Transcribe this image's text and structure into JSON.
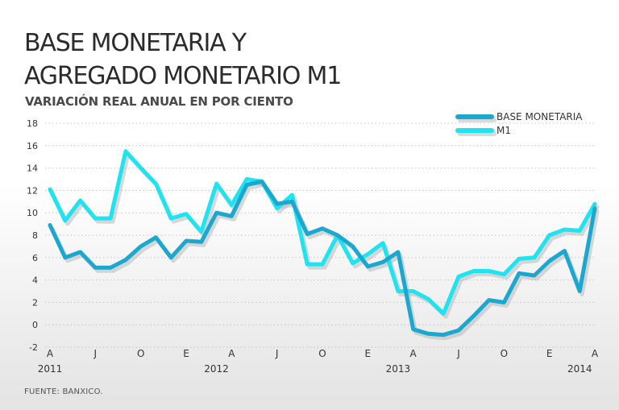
{
  "header": {
    "title_line1": "BASE MONETARIA Y",
    "title_line2": "AGREGADO MONETARIO M1",
    "subtitle": "VARIACIÓN REAL ANUAL EN POR CIENTO"
  },
  "footer": {
    "source": "FUENTE: BANXICO."
  },
  "colors": {
    "base_monetaria": "#1aa8d0",
    "m1": "#1ee3f0",
    "grid": "#c4c4c4",
    "shadow": "#b9b9b9"
  },
  "chart_data": {
    "type": "line",
    "title": "BASE MONETARIA Y AGREGADO MONETARIO M1",
    "subtitle": "VARIACIÓN REAL ANUAL EN POR CIENTO",
    "xlabel": "",
    "ylabel": "",
    "ylim": [
      -2,
      18
    ],
    "yticks": [
      -2,
      0,
      2,
      4,
      6,
      8,
      10,
      12,
      14,
      16,
      18
    ],
    "grid": true,
    "legend_position": "top-right",
    "x": [
      0,
      1,
      2,
      3,
      4,
      5,
      6,
      7,
      8,
      9,
      10,
      11,
      12,
      13,
      14,
      15,
      16,
      17,
      18,
      19,
      20,
      21,
      22,
      23,
      24,
      25,
      26,
      27,
      28,
      29,
      30,
      31,
      32,
      33,
      34,
      35,
      36
    ],
    "x_tick_labels": [
      "A",
      "J",
      "O",
      "E",
      "A",
      "J",
      "O",
      "E",
      "A",
      "J",
      "O",
      "E",
      "A"
    ],
    "x_tick_positions": [
      0,
      3,
      6,
      9,
      12,
      15,
      18,
      21,
      24,
      27,
      30,
      33,
      36
    ],
    "years": [
      {
        "label": "2011",
        "position": 0
      },
      {
        "label": "2012",
        "position": 11
      },
      {
        "label": "2013",
        "position": 23
      },
      {
        "label": "2014",
        "position": 35
      }
    ],
    "series": [
      {
        "name": "BASE MONETARIA",
        "color": "#1aa8d0",
        "values": [
          8.9,
          6.0,
          6.5,
          5.1,
          5.1,
          5.8,
          7.0,
          7.8,
          6.0,
          7.5,
          7.4,
          10.0,
          9.7,
          12.5,
          12.8,
          10.8,
          11.0,
          8.1,
          8.6,
          8.0,
          7.0,
          5.2,
          5.6,
          6.5,
          -0.4,
          -0.8,
          -0.9,
          -0.5,
          0.8,
          2.2,
          2.0,
          4.6,
          4.4,
          5.7,
          6.6,
          3.0,
          10.4
        ]
      },
      {
        "name": "M1",
        "color": "#1ee3f0",
        "values": [
          12.1,
          9.3,
          11.1,
          9.5,
          9.5,
          15.5,
          14.0,
          12.6,
          9.5,
          9.9,
          8.3,
          12.6,
          10.7,
          13.0,
          12.8,
          10.4,
          11.6,
          5.4,
          5.4,
          8.0,
          5.5,
          6.3,
          7.3,
          3.0,
          3.0,
          2.3,
          1.0,
          4.3,
          4.8,
          4.8,
          4.5,
          5.9,
          6.0,
          8.0,
          8.5,
          8.4,
          10.8
        ]
      }
    ]
  }
}
